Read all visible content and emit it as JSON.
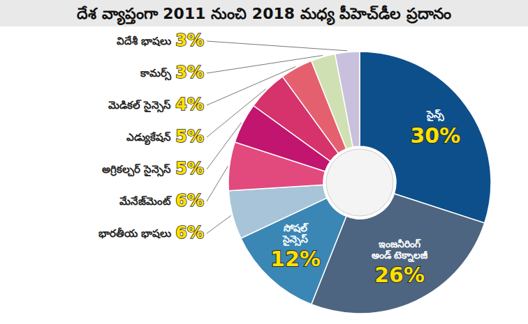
{
  "chart_data": {
    "type": "pie",
    "title": "దేశ వ్యాప్తంగా 2011 నుంచి 2018 మధ్య పీహెచ్‌డీల ప్రదానం",
    "categories": [
      "సైన్స్",
      "ఇంజనీరింగ్ అండ్ టెక్నాలజీ",
      "సోషల్ సైన్సెస్",
      "భారతీయ భాషలు",
      "మేనేజ్‌మెంట్",
      "అగ్రికల్చర్ సైన్సెస్",
      "ఎడ్యుకేషన్",
      "మెడికల్ సైన్సెస్",
      "కామర్స్",
      "విదేశీ భాషలు"
    ],
    "values": [
      30,
      26,
      12,
      6,
      6,
      5,
      5,
      4,
      3,
      3
    ],
    "value_labels": [
      "30%",
      "26%",
      "12%",
      "6%",
      "6%",
      "5%",
      "5%",
      "4%",
      "3%",
      "3%"
    ],
    "colors": [
      "#0d4f8b",
      "#4d6580",
      "#3a86b5",
      "#a8c4d8",
      "#e24a7d",
      "#c2156f",
      "#d6336c",
      "#e5606f",
      "#cfe1b2",
      "#c9c0de"
    ],
    "data_labels": true
  }
}
